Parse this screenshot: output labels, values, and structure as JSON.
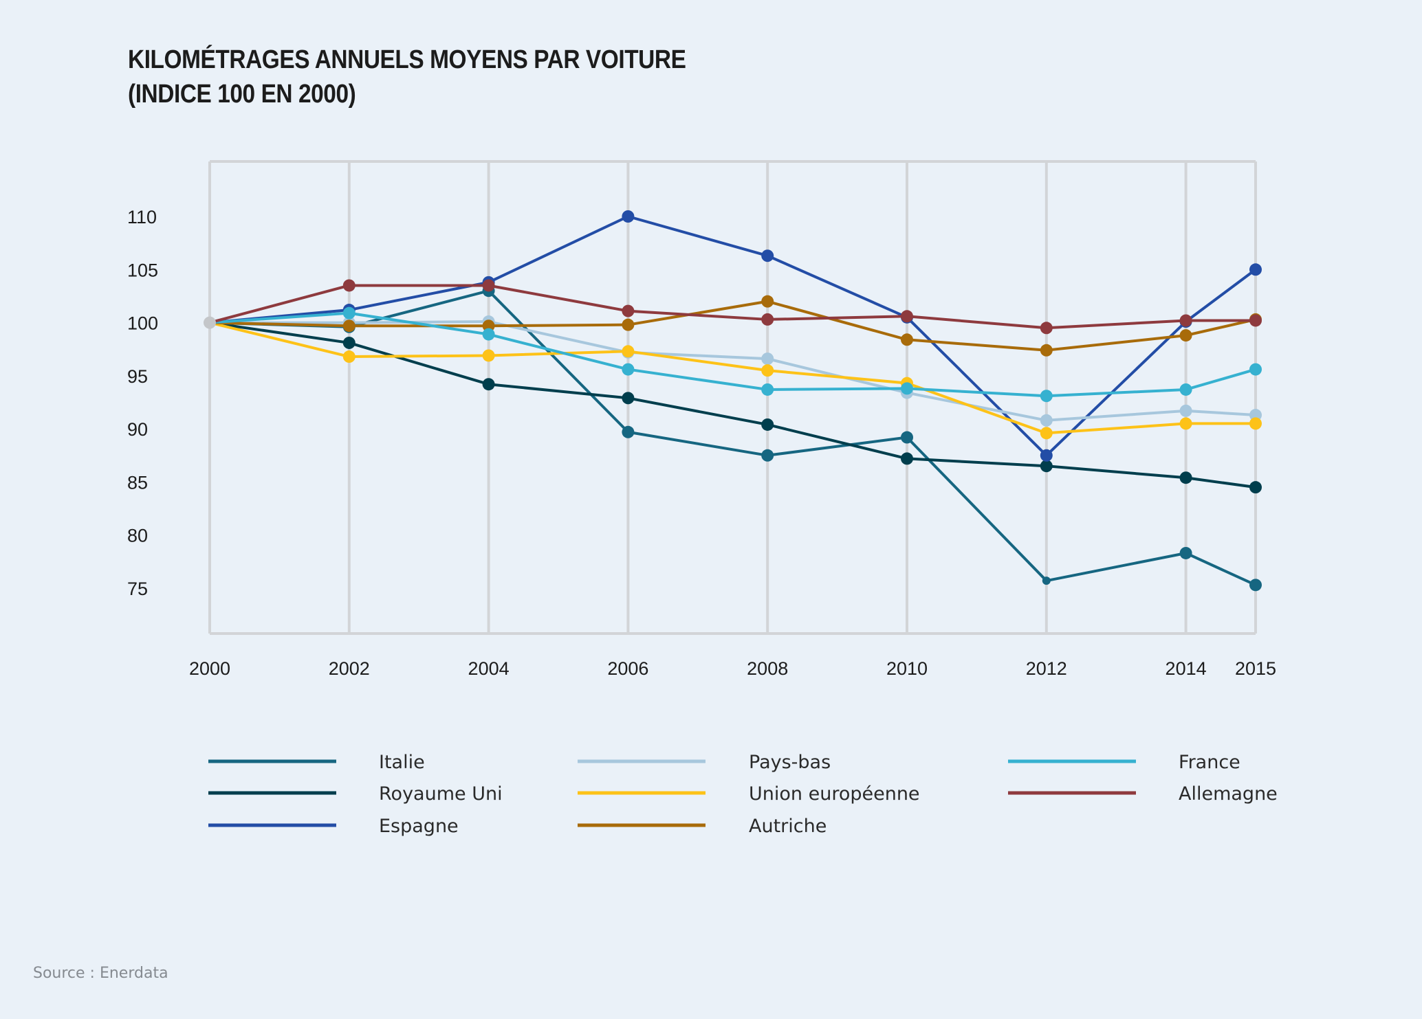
{
  "title_line1": "KILOMÉTRAGES ANNUELS MOYENS PAR VOITURE",
  "title_line2": "(INDICE 100 EN 2000)",
  "source": "Source : Enerdata",
  "chart_data": {
    "type": "line",
    "title": "KILOMÉTRAGES ANNUELS MOYENS PAR VOITURE (INDICE 100 EN 2000)",
    "xlabel": "",
    "ylabel": "",
    "x": [
      "2000",
      "2002",
      "2004",
      "2006",
      "2008",
      "2010",
      "2012",
      "2014",
      "2015"
    ],
    "x_ticks": [
      "2000",
      "2002",
      "2004",
      "2006",
      "2008",
      "2010",
      "2012",
      "2014",
      "2015"
    ],
    "y_ticks": [
      110,
      105,
      100,
      95,
      90,
      85,
      80,
      75
    ],
    "ylim": [
      70.5,
      115.5
    ],
    "grid": "vertical",
    "legend_position": "bottom",
    "series": [
      {
        "name": "Italie",
        "color": "#166681",
        "values": [
          100,
          99.6,
          103.0,
          89.7,
          87.5,
          89.2,
          75.7,
          78.3,
          75.3
        ]
      },
      {
        "name": "Royaume Uni",
        "color": "#003e4d",
        "values": [
          100,
          98.1,
          94.2,
          92.9,
          90.4,
          87.2,
          86.5,
          85.4,
          84.5
        ]
      },
      {
        "name": "Espagne",
        "color": "#234da6",
        "values": [
          100,
          101.2,
          103.8,
          110.0,
          106.3,
          100.5,
          87.5,
          100.1,
          105.0
        ]
      },
      {
        "name": "Pays-bas",
        "color": "#a7c7dd",
        "values": [
          100,
          100.0,
          100.1,
          97.2,
          96.6,
          93.4,
          90.8,
          91.7,
          91.3
        ]
      },
      {
        "name": "Union européenne",
        "color": "#fdc218",
        "values": [
          100,
          96.8,
          96.9,
          97.3,
          95.5,
          94.3,
          89.6,
          90.5,
          90.5
        ]
      },
      {
        "name": "Autriche",
        "color": "#a86b0a",
        "values": [
          100,
          99.7,
          99.7,
          99.8,
          102.0,
          98.4,
          97.4,
          98.8,
          100.3
        ]
      },
      {
        "name": "France",
        "color": "#36b1d0",
        "values": [
          100,
          100.9,
          98.9,
          95.6,
          93.7,
          93.8,
          93.1,
          93.7,
          95.6
        ]
      },
      {
        "name": "Allemagne",
        "color": "#8e3a3e",
        "values": [
          100,
          103.5,
          103.5,
          101.1,
          100.3,
          100.6,
          99.5,
          100.2,
          100.2
        ]
      }
    ],
    "legend_order": [
      "Italie",
      "Pays-bas",
      "France",
      "Royaume Uni",
      "Union européenne",
      "Allemagne",
      "Espagne",
      "Autriche"
    ],
    "start_point_color": "#c4c6c9"
  }
}
